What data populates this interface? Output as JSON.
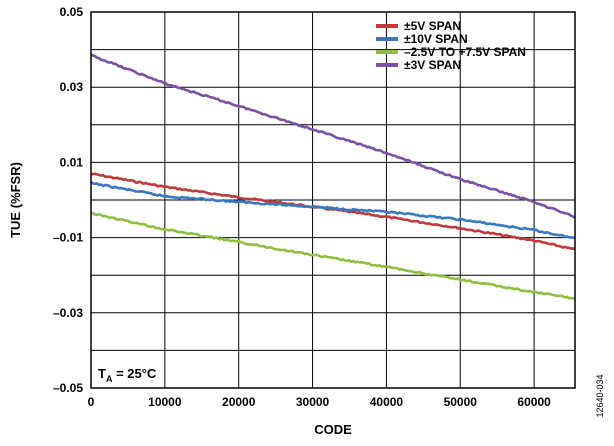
{
  "chart_data": {
    "type": "line",
    "xlabel": "CODE",
    "ylabel": "TUE (%FSR)",
    "xlim": [
      0,
      65535
    ],
    "ylim": [
      -0.05,
      0.05
    ],
    "x_ticks": [
      0,
      10000,
      20000,
      30000,
      40000,
      50000,
      60000
    ],
    "y_ticks": [
      -0.05,
      -0.03,
      -0.01,
      0.01,
      0.03,
      0.05
    ],
    "x_tick_labels": [
      "0",
      "10000",
      "20000",
      "30000",
      "40000",
      "50000",
      "60000"
    ],
    "y_tick_labels": [
      "–0.05",
      "–0.03",
      "–0.01",
      "0.01",
      "0.03",
      "0.05"
    ],
    "grid": true,
    "legend_position": "top-right",
    "annotation": {
      "main": "T",
      "sub": "A",
      "rest": " = 25°C"
    },
    "figure_id": "12640-034",
    "series": [
      {
        "name": "±5V SPAN",
        "color": "#c0393b",
        "x": [
          0,
          10000,
          20000,
          30000,
          40000,
          50000,
          60000,
          65535
        ],
        "y": [
          0.007,
          0.0035,
          0.0007,
          -0.0018,
          -0.0045,
          -0.0075,
          -0.0108,
          -0.0132
        ]
      },
      {
        "name": "±10V SPAN",
        "color": "#3a78c2",
        "x": [
          0,
          10000,
          20000,
          30000,
          40000,
          50000,
          60000,
          65535
        ],
        "y": [
          0.0045,
          0.001,
          -0.0005,
          -0.0018,
          -0.0032,
          -0.0052,
          -0.008,
          -0.0102
        ]
      },
      {
        "name": "–2.5V TO +7.5V SPAN",
        "color": "#8dc040",
        "x": [
          0,
          10000,
          20000,
          30000,
          40000,
          50000,
          60000,
          65535
        ],
        "y": [
          -0.0035,
          -0.0078,
          -0.0112,
          -0.0146,
          -0.0178,
          -0.0212,
          -0.0245,
          -0.0262
        ]
      },
      {
        "name": "±3V SPAN",
        "color": "#7b52a3",
        "x": [
          0,
          10000,
          20000,
          30000,
          40000,
          50000,
          60000,
          65535
        ],
        "y": [
          0.0385,
          0.031,
          0.025,
          0.0188,
          0.0125,
          0.0055,
          -0.0005,
          -0.0045
        ]
      }
    ]
  }
}
